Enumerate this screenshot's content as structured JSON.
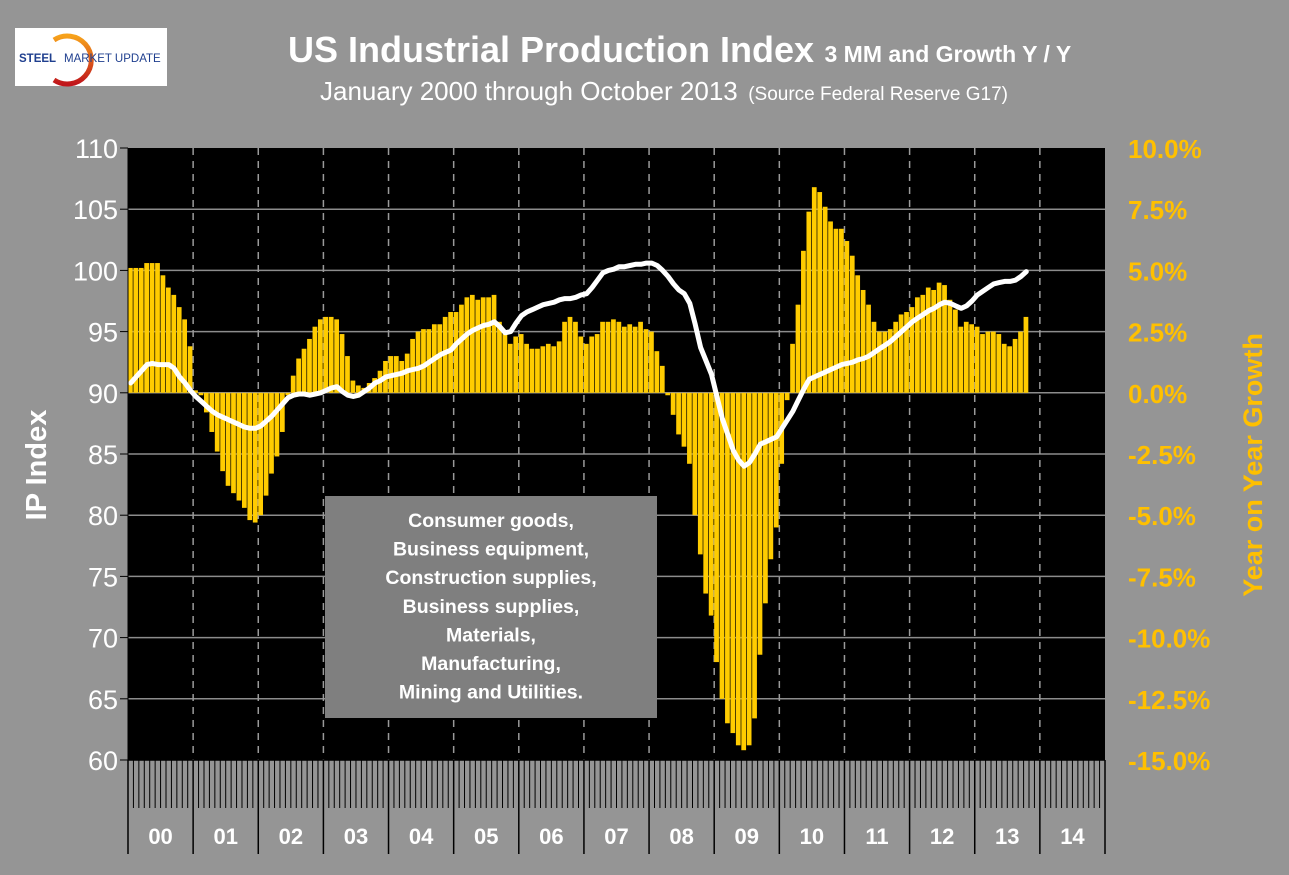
{
  "logo": {
    "text_bold": "STEEL",
    "text_regular": "MARKET UPDATE"
  },
  "chart_data": {
    "type": "bar+line",
    "title": "US Industrial Production Index",
    "title_suffix": "3 MM and Growth Y / Y",
    "subtitle": "January 2000 through October 2013",
    "subtitle_note": "(Source Federal Reserve G17)",
    "ylabel_left": "IP Index",
    "ylabel_right": "Year on Year Growth",
    "ylim_left": [
      60,
      110
    ],
    "ylim_right": [
      -15.0,
      10.0
    ],
    "yticks_left": [
      "110",
      "105",
      "100",
      "95",
      "90",
      "85",
      "80",
      "75",
      "70",
      "65",
      "60"
    ],
    "yticks_right": [
      "10.0%",
      "7.5%",
      "5.0%",
      "2.5%",
      "0.0%",
      "-2.5%",
      "-5.0%",
      "-7.5%",
      "-10.0%",
      "-12.5%",
      "-15.0%"
    ],
    "x_categories": [
      "00",
      "01",
      "02",
      "03",
      "04",
      "05",
      "06",
      "07",
      "08",
      "09",
      "10",
      "11",
      "12",
      "13",
      "14"
    ],
    "grid": true,
    "colors": {
      "background": "#959595",
      "plot": "#000000",
      "bars": "#FFCC00",
      "line": "#FFFFFF",
      "right_axis": "#FFC000",
      "annotation_box": "#7F7F7F"
    },
    "series": [
      {
        "type": "bar",
        "axis": "right",
        "unit": "%",
        "values_by_year": {
          "2000": [
            5.1,
            5.1,
            5.1,
            5.3,
            5.3,
            5.3,
            4.8,
            4.3,
            4.0,
            3.5,
            3.0,
            1.9
          ],
          "2001": [
            0.1,
            -0.1,
            -0.8,
            -1.6,
            -2.4,
            -3.2,
            -3.8,
            -4.1,
            -4.4,
            -4.7,
            -5.2,
            -5.3
          ],
          "2002": [
            -5.0,
            -4.2,
            -3.3,
            -2.6,
            -1.6,
            -0.1,
            0.7,
            1.4,
            1.8,
            2.2,
            2.7,
            3.0
          ],
          "2003": [
            3.1,
            3.1,
            3.0,
            2.4,
            1.5,
            0.5,
            0.3,
            0.2,
            0.4,
            0.6,
            0.9,
            1.3
          ],
          "2004": [
            1.5,
            1.5,
            1.3,
            1.6,
            2.2,
            2.5,
            2.6,
            2.6,
            2.8,
            2.8,
            3.1,
            3.3
          ],
          "2005": [
            3.3,
            3.6,
            3.9,
            4.0,
            3.8,
            3.9,
            3.9,
            4.0,
            2.9,
            2.4,
            2.0,
            2.3
          ],
          "2006": [
            2.4,
            2.0,
            1.8,
            1.8,
            1.9,
            2.0,
            1.9,
            2.1,
            2.9,
            3.1,
            2.9,
            2.3
          ],
          "2007": [
            2.0,
            2.3,
            2.4,
            2.9,
            2.9,
            3.0,
            2.9,
            2.7,
            2.8,
            2.7,
            2.9,
            2.6
          ],
          "2008": [
            2.5,
            1.7,
            1.1,
            -0.1,
            -0.9,
            -1.7,
            -2.2,
            -2.9,
            -5.0,
            -6.6,
            -8.2,
            -9.1
          ],
          "2009": [
            -11.0,
            -12.5,
            -13.5,
            -13.9,
            -14.4,
            -14.6,
            -14.4,
            -13.3,
            -10.7,
            -8.6,
            -6.8,
            -5.5
          ],
          "2010": [
            -2.9,
            -0.3,
            2.0,
            3.6,
            5.8,
            7.4,
            8.4,
            8.2,
            7.6,
            7.0,
            6.7,
            6.7
          ],
          "2011": [
            6.2,
            5.6,
            4.8,
            4.2,
            3.6,
            2.9,
            2.5,
            2.5,
            2.6,
            2.9,
            3.2,
            3.3
          ],
          "2012": [
            3.5,
            3.9,
            4.0,
            4.3,
            4.2,
            4.5,
            4.4,
            3.8,
            3.4,
            2.7,
            2.9,
            2.8
          ],
          "2013": [
            2.7,
            2.4,
            2.5,
            2.5,
            2.4,
            2.0,
            1.9,
            2.2,
            2.5,
            3.1
          ]
        }
      },
      {
        "type": "line",
        "axis": "left",
        "values_by_year": {
          "2000": [
            90.8,
            91.3,
            91.8,
            92.3,
            92.4,
            92.3,
            92.3,
            92.3,
            92.0,
            91.3,
            90.8,
            90.2
          ],
          "2001": [
            89.7,
            89.3,
            88.9,
            88.5,
            88.2,
            88.0,
            87.8,
            87.6,
            87.4,
            87.2,
            87.1,
            87.1
          ],
          "2002": [
            87.3,
            87.7,
            88.1,
            88.6,
            89.1,
            89.6,
            89.8,
            89.9,
            89.9,
            89.8,
            89.9,
            90.0
          ],
          "2003": [
            90.2,
            90.4,
            90.5,
            90.1,
            89.8,
            89.7,
            89.8,
            90.1,
            90.4,
            90.8,
            91.0,
            91.3
          ],
          "2004": [
            91.4,
            91.5,
            91.6,
            91.8,
            91.9,
            92.0,
            92.2,
            92.5,
            92.8,
            93.1,
            93.3,
            93.5
          ],
          "2005": [
            94.0,
            94.4,
            94.8,
            95.1,
            95.3,
            95.5,
            95.6,
            95.8,
            95.4,
            94.9,
            95.0,
            95.7
          ],
          "2006": [
            96.3,
            96.6,
            96.8,
            97.0,
            97.2,
            97.3,
            97.4,
            97.6,
            97.7,
            97.7,
            97.8,
            98.0
          ],
          "2007": [
            98.1,
            98.6,
            99.2,
            99.8,
            100.0,
            100.1,
            100.3,
            100.3,
            100.4,
            100.5,
            100.5,
            100.6
          ],
          "2008": [
            100.6,
            100.4,
            100.0,
            99.5,
            98.9,
            98.4,
            98.1,
            97.3,
            95.6,
            93.7,
            92.6,
            91.5
          ],
          "2009": [
            89.7,
            87.9,
            86.6,
            85.3,
            84.5,
            84.0,
            84.3,
            85.0,
            85.8,
            86.0,
            86.2,
            86.4
          ],
          "2010": [
            87.1,
            87.8,
            88.5,
            89.4,
            90.3,
            91.1,
            91.3,
            91.5,
            91.7,
            91.9,
            92.1,
            92.3
          ],
          "2011": [
            92.4,
            92.5,
            92.7,
            92.8,
            93.0,
            93.3,
            93.6,
            93.9,
            94.2,
            94.6,
            95.0,
            95.4
          ],
          "2012": [
            95.8,
            96.1,
            96.4,
            96.7,
            96.9,
            97.2,
            97.4,
            97.3,
            97.1,
            96.9,
            97.1,
            97.5
          ],
          "2013": [
            98.0,
            98.3,
            98.6,
            98.9,
            99.0,
            99.1,
            99.1,
            99.2,
            99.5,
            99.9
          ]
        }
      }
    ],
    "annotation": [
      "Consumer goods,",
      "Business equipment,",
      "Construction supplies,",
      "Business supplies,",
      "Materials,",
      "Manufacturing,",
      "Mining and Utilities."
    ]
  }
}
